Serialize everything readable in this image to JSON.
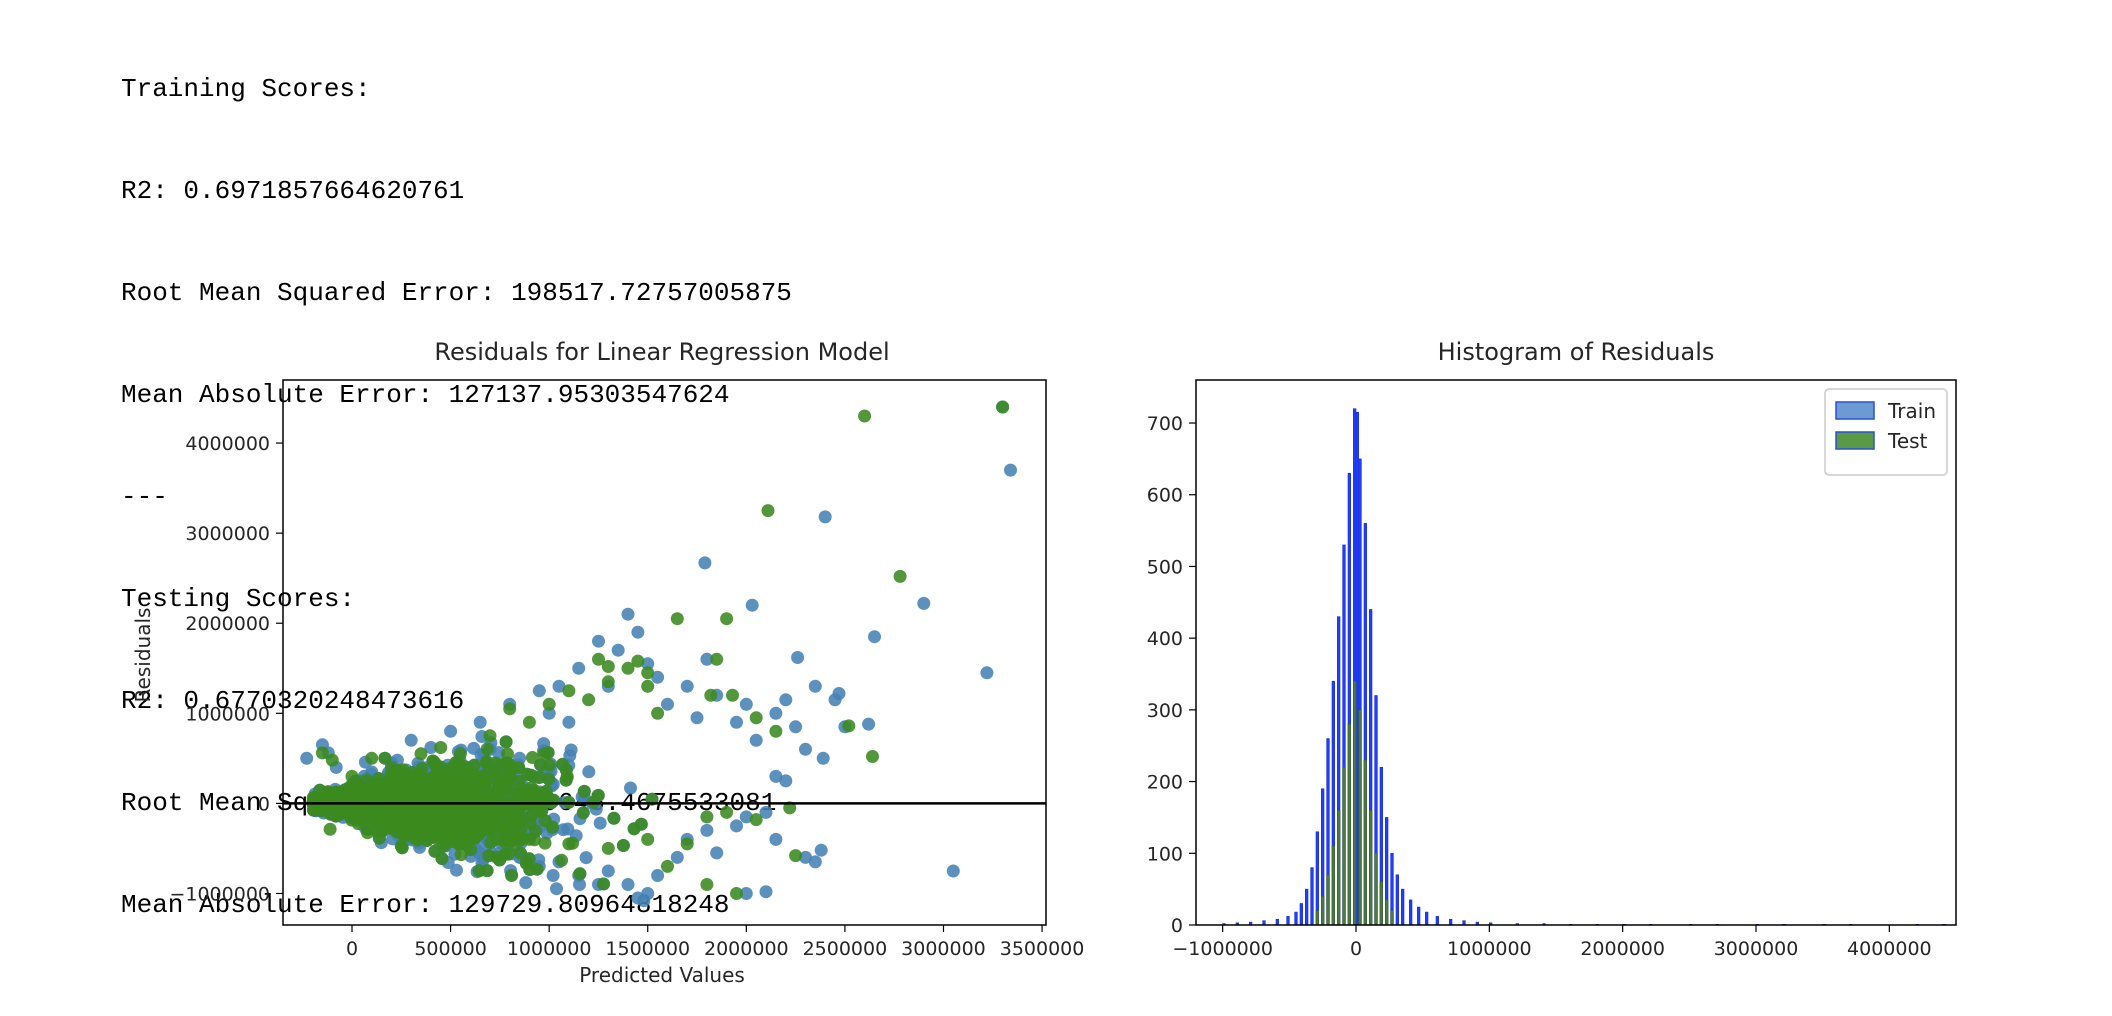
{
  "output_lines": [
    "Training Scores:",
    "R2: 0.6971857664620761",
    "Root Mean Squared Error: 198517.72757005875",
    "Mean Absolute Error: 127137.95303547624",
    "---",
    "Testing Scores:",
    "R2: 0.6770320248473616",
    "Root Mean Squared Error: 219645.4675533081",
    "Mean Absolute Error: 129729.80964818248"
  ],
  "colors": {
    "train_scatter": "#4682b4",
    "test_scatter": "#3a8a1f",
    "hist_train": "#1f3dff",
    "hist_test": "#4a7a40",
    "legend_train": "#6b9bd1",
    "legend_test": "#5a9a45",
    "zero_line": "#000000"
  },
  "chart_data": [
    {
      "type": "scatter",
      "title": "Residuals for Linear Regression Model",
      "xlabel": "Predicted Values",
      "ylabel": "Residuals",
      "xlim": [
        -350000,
        3520000
      ],
      "ylim": [
        -1350000,
        4700000
      ],
      "xticks": [
        0,
        500000,
        1000000,
        1500000,
        2000000,
        2500000,
        3000000,
        3500000
      ],
      "xtick_labels": [
        "0",
        "500000",
        "1000000",
        "1500000",
        "2000000",
        "2500000",
        "3000000",
        "3500000"
      ],
      "yticks": [
        -1000000,
        0,
        1000000,
        2000000,
        3000000,
        4000000
      ],
      "ytick_labels": [
        "−1000000",
        "0",
        "1000000",
        "2000000",
        "3000000",
        "4000000"
      ],
      "hline": 0,
      "series": [
        {
          "name": "Train",
          "cluster_points": [
            [
              -230000,
              500000
            ],
            [
              -150000,
              650000
            ],
            [
              -120000,
              560000
            ],
            [
              -80000,
              400000
            ],
            [
              50000,
              250000
            ],
            [
              100000,
              350000
            ],
            [
              200000,
              450000
            ],
            [
              300000,
              700000
            ],
            [
              400000,
              620000
            ],
            [
              500000,
              800000
            ],
            [
              550000,
              200000
            ],
            [
              650000,
              900000
            ],
            [
              700000,
              600000
            ],
            [
              800000,
              1100000
            ],
            [
              850000,
              500000
            ],
            [
              950000,
              1250000
            ],
            [
              1000000,
              1000000
            ],
            [
              1050000,
              1300000
            ],
            [
              1100000,
              900000
            ],
            [
              1150000,
              1500000
            ],
            [
              1250000,
              1800000
            ],
            [
              1300000,
              1300000
            ],
            [
              1350000,
              1700000
            ],
            [
              1400000,
              2100000
            ],
            [
              1450000,
              1900000
            ],
            [
              1500000,
              1550000
            ],
            [
              1550000,
              1400000
            ],
            [
              1600000,
              1100000
            ],
            [
              1700000,
              1300000
            ],
            [
              1750000,
              950000
            ],
            [
              1800000,
              1600000
            ],
            [
              1850000,
              1200000
            ],
            [
              1950000,
              900000
            ],
            [
              2000000,
              1100000
            ],
            [
              2050000,
              700000
            ],
            [
              2150000,
              1000000
            ],
            [
              2200000,
              1150000
            ],
            [
              2250000,
              850000
            ],
            [
              2350000,
              1300000
            ],
            [
              2450000,
              1150000
            ],
            [
              2500000,
              850000
            ],
            [
              2300000,
              600000
            ],
            [
              2150000,
              300000
            ],
            [
              2200000,
              250000
            ],
            [
              200000,
              -200000
            ],
            [
              300000,
              -250000
            ],
            [
              400000,
              -300000
            ],
            [
              550000,
              -350000
            ],
            [
              650000,
              -450000
            ],
            [
              750000,
              -550000
            ],
            [
              850000,
              -600000
            ],
            [
              950000,
              -700000
            ],
            [
              1050000,
              -650000
            ],
            [
              1150000,
              -800000
            ],
            [
              1250000,
              -900000
            ],
            [
              1300000,
              -750000
            ],
            [
              1400000,
              -900000
            ],
            [
              1450000,
              -1050000
            ],
            [
              1500000,
              -1000000
            ],
            [
              1550000,
              -800000
            ],
            [
              1650000,
              -600000
            ],
            [
              1700000,
              -400000
            ],
            [
              1800000,
              -300000
            ],
            [
              1850000,
              -550000
            ],
            [
              1950000,
              -250000
            ],
            [
              2000000,
              -150000
            ],
            [
              2100000,
              -100000
            ],
            [
              2150000,
              -400000
            ],
            [
              2300000,
              -600000
            ],
            [
              2350000,
              -650000
            ],
            [
              2000000,
              -1000000
            ],
            [
              2100000,
              -980000
            ],
            [
              1480000,
              -1080000
            ],
            [
              1020000,
              -800000
            ],
            [
              900000,
              -650000
            ],
            [
              600000,
              -400000
            ]
          ],
          "outliers": [
            [
              3340000,
              3700000
            ],
            [
              3300000,
              4400000
            ],
            [
              2400000,
              3180000
            ],
            [
              1790000,
              2670000
            ],
            [
              2030000,
              2200000
            ],
            [
              2650000,
              1850000
            ],
            [
              2900000,
              2220000
            ],
            [
              3220000,
              1450000
            ],
            [
              2470000,
              1220000
            ],
            [
              2260000,
              1620000
            ],
            [
              2620000,
              880000
            ],
            [
              2390000,
              500000
            ],
            [
              3050000,
              -750000
            ],
            [
              2380000,
              -520000
            ]
          ]
        },
        {
          "name": "Test",
          "cluster_points": [
            [
              -150000,
              560000
            ],
            [
              -100000,
              480000
            ],
            [
              0,
              300000
            ],
            [
              100000,
              500000
            ],
            [
              200000,
              400000
            ],
            [
              350000,
              550000
            ],
            [
              450000,
              620000
            ],
            [
              550000,
              550000
            ],
            [
              700000,
              750000
            ],
            [
              800000,
              1050000
            ],
            [
              900000,
              900000
            ],
            [
              1000000,
              1100000
            ],
            [
              1100000,
              1250000
            ],
            [
              1200000,
              1150000
            ],
            [
              1300000,
              1350000
            ],
            [
              1400000,
              1500000
            ],
            [
              1500000,
              1450000
            ],
            [
              1550000,
              1000000
            ],
            [
              1650000,
              2050000
            ],
            [
              1900000,
              2050000
            ],
            [
              1850000,
              1600000
            ],
            [
              1820000,
              1200000
            ],
            [
              2050000,
              950000
            ],
            [
              2150000,
              800000
            ],
            [
              1500000,
              1300000
            ],
            [
              1450000,
              1580000
            ],
            [
              1300000,
              1520000
            ],
            [
              1250000,
              1600000
            ],
            [
              300000,
              -150000
            ],
            [
              500000,
              -200000
            ],
            [
              700000,
              -300000
            ],
            [
              900000,
              -400000
            ],
            [
              1100000,
              -450000
            ],
            [
              1300000,
              -500000
            ],
            [
              1500000,
              -400000
            ],
            [
              1700000,
              -450000
            ],
            [
              1800000,
              -150000
            ],
            [
              1900000,
              -100000
            ],
            [
              2050000,
              -180000
            ],
            [
              2220000,
              -50000
            ],
            [
              2250000,
              -580000
            ],
            [
              1950000,
              -1000000
            ],
            [
              1800000,
              -900000
            ],
            [
              1600000,
              -700000
            ]
          ],
          "outliers": [
            [
              2600000,
              4300000
            ],
            [
              3300000,
              4400000
            ],
            [
              2110000,
              3250000
            ],
            [
              2780000,
              2520000
            ],
            [
              2640000,
              520000
            ],
            [
              2520000,
              860000
            ],
            [
              1930000,
              1200000
            ]
          ]
        }
      ]
    },
    {
      "type": "histogram",
      "title": "Histogram of Residuals",
      "xlim": [
        -1200000,
        4500000
      ],
      "ylim": [
        0,
        760
      ],
      "xticks": [
        -1000000,
        0,
        1000000,
        2000000,
        3000000,
        4000000
      ],
      "xtick_labels": [
        "−1000000",
        "0",
        "1000000",
        "2000000",
        "3000000",
        "4000000"
      ],
      "yticks": [
        0,
        100,
        200,
        300,
        400,
        500,
        600,
        700
      ],
      "ytick_labels": [
        "0",
        "100",
        "200",
        "300",
        "400",
        "500",
        "600",
        "700"
      ],
      "legend": {
        "position": "upper right",
        "entries": [
          "Train",
          "Test"
        ]
      },
      "bin_width": 20000,
      "series": [
        {
          "name": "Train",
          "bins": [
            [
              -1000000,
              2
            ],
            [
              -900000,
              3
            ],
            [
              -800000,
              4
            ],
            [
              -700000,
              6
            ],
            [
              -600000,
              8
            ],
            [
              -520000,
              12
            ],
            [
              -460000,
              18
            ],
            [
              -420000,
              30
            ],
            [
              -380000,
              50
            ],
            [
              -340000,
              80
            ],
            [
              -300000,
              130
            ],
            [
              -260000,
              190
            ],
            [
              -220000,
              260
            ],
            [
              -180000,
              340
            ],
            [
              -140000,
              430
            ],
            [
              -100000,
              530
            ],
            [
              -60000,
              630
            ],
            [
              -20000,
              720
            ],
            [
              0,
              715
            ],
            [
              20000,
              650
            ],
            [
              60000,
              560
            ],
            [
              100000,
              440
            ],
            [
              140000,
              320
            ],
            [
              180000,
              220
            ],
            [
              220000,
              150
            ],
            [
              260000,
              100
            ],
            [
              300000,
              70
            ],
            [
              340000,
              50
            ],
            [
              400000,
              35
            ],
            [
              460000,
              25
            ],
            [
              520000,
              18
            ],
            [
              600000,
              12
            ],
            [
              700000,
              8
            ],
            [
              800000,
              6
            ],
            [
              900000,
              4
            ],
            [
              1000000,
              3
            ],
            [
              1200000,
              2
            ],
            [
              1400000,
              2
            ],
            [
              1600000,
              1
            ],
            [
              1800000,
              1
            ],
            [
              2000000,
              1
            ],
            [
              2200000,
              1
            ],
            [
              2500000,
              1
            ],
            [
              2700000,
              1
            ],
            [
              3000000,
              1
            ],
            [
              3200000,
              1
            ],
            [
              3500000,
              1
            ],
            [
              3700000,
              1
            ],
            [
              4200000,
              1
            ],
            [
              4400000,
              1
            ]
          ]
        },
        {
          "name": "Test",
          "bins": [
            [
              -300000,
              20
            ],
            [
              -260000,
              40
            ],
            [
              -220000,
              70
            ],
            [
              -180000,
              110
            ],
            [
              -140000,
              160
            ],
            [
              -100000,
              220
            ],
            [
              -60000,
              280
            ],
            [
              -20000,
              340
            ],
            [
              20000,
              300
            ],
            [
              60000,
              230
            ],
            [
              100000,
              160
            ],
            [
              140000,
              100
            ],
            [
              180000,
              60
            ],
            [
              220000,
              35
            ],
            [
              260000,
              20
            ]
          ]
        }
      ]
    }
  ]
}
